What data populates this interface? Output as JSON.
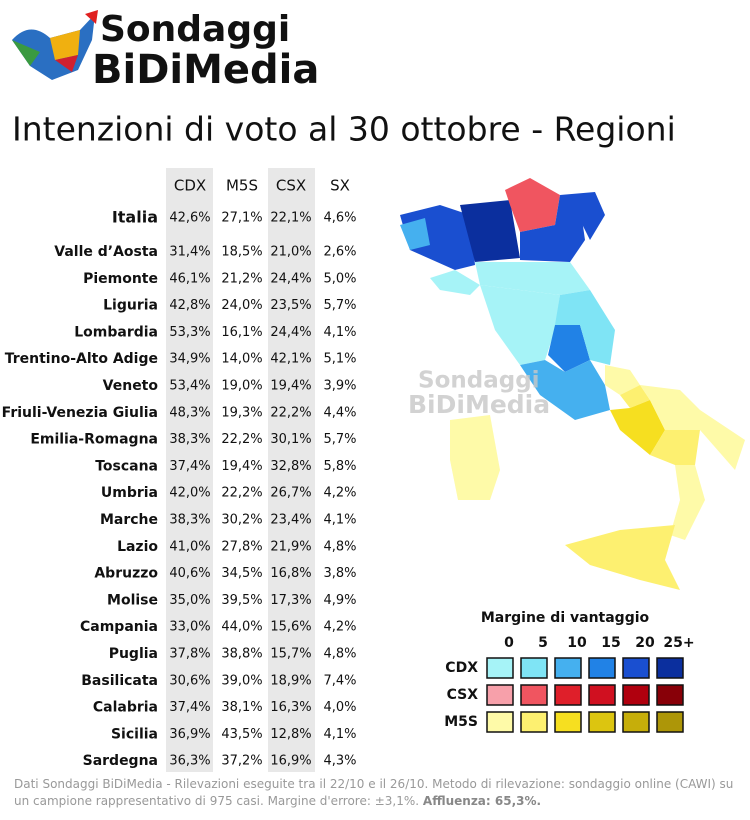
{
  "header": {
    "logo_line1": "Sondaggi",
    "logo_line2": "BiDiMedia",
    "title": "Intenzioni di voto al 30 ottobre - Regioni"
  },
  "table": {
    "columns": [
      "CDX",
      "M5S",
      "CSX",
      "SX"
    ],
    "rows": [
      [
        "Italia",
        "42,6%",
        "27,1%",
        "22,1%",
        "4,6%"
      ],
      [
        "Valle d’Aosta",
        "31,4%",
        "18,5%",
        "21,0%",
        "2,6%"
      ],
      [
        "Piemonte",
        "46,1%",
        "21,2%",
        "24,4%",
        "5,0%"
      ],
      [
        "Liguria",
        "42,8%",
        "24,0%",
        "23,5%",
        "5,7%"
      ],
      [
        "Lombardia",
        "53,3%",
        "16,1%",
        "24,4%",
        "4,1%"
      ],
      [
        "Trentino-Alto Adige",
        "34,9%",
        "14,0%",
        "42,1%",
        "5,1%"
      ],
      [
        "Veneto",
        "53,4%",
        "19,0%",
        "19,4%",
        "3,9%"
      ],
      [
        "Friuli-Venezia Giulia",
        "48,3%",
        "19,3%",
        "22,2%",
        "4,4%"
      ],
      [
        "Emilia-Romagna",
        "38,3%",
        "22,2%",
        "30,1%",
        "5,7%"
      ],
      [
        "Toscana",
        "37,4%",
        "19,4%",
        "32,8%",
        "5,8%"
      ],
      [
        "Umbria",
        "42,0%",
        "22,2%",
        "26,7%",
        "4,2%"
      ],
      [
        "Marche",
        "38,3%",
        "30,2%",
        "23,4%",
        "4,1%"
      ],
      [
        "Lazio",
        "41,0%",
        "27,8%",
        "21,9%",
        "4,8%"
      ],
      [
        "Abruzzo",
        "40,6%",
        "34,5%",
        "16,8%",
        "3,8%"
      ],
      [
        "Molise",
        "35,0%",
        "39,5%",
        "17,3%",
        "4,9%"
      ],
      [
        "Campania",
        "33,0%",
        "44,0%",
        "15,6%",
        "4,2%"
      ],
      [
        "Puglia",
        "37,8%",
        "38,8%",
        "15,7%",
        "4,8%"
      ],
      [
        "Basilicata",
        "30,6%",
        "39,0%",
        "18,9%",
        "7,4%"
      ],
      [
        "Calabria",
        "37,4%",
        "38,1%",
        "16,3%",
        "4,0%"
      ],
      [
        "Sicilia",
        "36,9%",
        "43,5%",
        "12,8%",
        "4,1%"
      ],
      [
        "Sardegna",
        "36,3%",
        "37,2%",
        "16,9%",
        "4,3%"
      ]
    ]
  },
  "watermark": {
    "line1": "Sondaggi",
    "line2": "BiDiMedia"
  },
  "legend": {
    "title": "Margine di vantaggio",
    "steps": [
      "0",
      "5",
      "10",
      "15",
      "20",
      "25+"
    ],
    "rows": [
      {
        "name": "CDX",
        "colors": [
          "#a6f3f7",
          "#7fe4f5",
          "#45b0ef",
          "#2182e6",
          "#1a4fd0",
          "#0b2f9e"
        ]
      },
      {
        "name": "CSX",
        "colors": [
          "#f7a0aa",
          "#f05560",
          "#df1f2a",
          "#d01020",
          "#b0000e",
          "#880008"
        ]
      },
      {
        "name": "M5S",
        "colors": [
          "#fefaa8",
          "#fdf070",
          "#f6df20",
          "#dcc510",
          "#c6ae0a",
          "#ad9608"
        ]
      }
    ]
  },
  "footer": {
    "text": "Dati Sondaggi BiDiMedia - Rilevazioni eseguite tra il 22/10 e il 26/10. Metodo di rilevazione: sondaggio online (CAWI) su un campione rappresentativo di 975 casi. Margine d'errore: ±3,1%.",
    "bold": "Affluenza: 65,3%."
  }
}
